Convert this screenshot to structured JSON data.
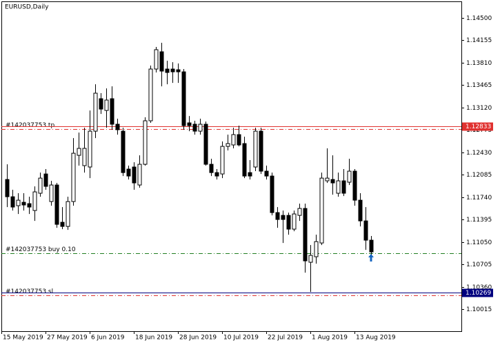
{
  "chart_data": {
    "type": "candlestick",
    "title": "EURUSD,Daily",
    "categories": [
      "15 May 2019",
      null,
      null,
      null,
      null,
      null,
      null,
      null,
      "27 May 2019",
      null,
      null,
      null,
      null,
      null,
      null,
      null,
      "6 Jun 2019",
      null,
      null,
      null,
      null,
      null,
      null,
      null,
      "18 Jun 2019",
      null,
      null,
      null,
      null,
      null,
      null,
      null,
      "28 Jun 2019",
      null,
      null,
      null,
      null,
      null,
      null,
      null,
      "10 Jul 2019",
      null,
      null,
      null,
      null,
      null,
      null,
      null,
      "22 Jul 2019",
      null,
      null,
      null,
      null,
      null,
      null,
      null,
      "1 Aug 2019",
      null,
      null,
      null,
      null,
      null,
      null,
      null,
      "13 Aug 2019",
      null,
      null
    ],
    "open": [
      1.12012,
      1.11746,
      1.11608,
      1.11661,
      1.1164,
      1.11534,
      1.118,
      1.12097,
      1.11672,
      1.11927,
      1.11353,
      1.11289,
      1.11672,
      1.12384,
      1.12225,
      1.12204,
      1.12756,
      1.13256,
      1.13075,
      1.13256,
      1.12863,
      1.12756,
      1.12172,
      1.12204,
      1.11927,
      1.12246,
      1.12916,
      1.13713,
      1.13979,
      1.13713,
      1.13713,
      1.13702,
      1.1367,
      1.12884,
      1.12863,
      1.12756,
      1.12863,
      1.12246,
      1.12118,
      1.12097,
      1.12522,
      1.12544,
      1.12703,
      1.12565,
      1.12118,
      1.12204,
      1.12756,
      1.1214,
      1.12065,
      1.11502,
      1.11459,
      1.11459,
      1.11247,
      1.11459,
      1.11566,
      1.10737,
      1.10822,
      1.11034,
      1.11991,
      1.12012,
      1.118,
      1.11991,
      1.1197,
      1.1214,
      1.11693,
      1.11374,
      1.11077
    ],
    "high": [
      1.12246,
      1.11853,
      1.118,
      1.118,
      1.11746,
      1.11906,
      1.12118,
      1.12172,
      1.11991,
      1.11959,
      1.11587,
      1.11746,
      1.1265,
      1.12735,
      1.12809,
      1.13075,
      1.13479,
      1.13341,
      1.13415,
      1.13447,
      1.12948,
      1.12809,
      1.12225,
      1.12278,
      1.12384,
      1.12969,
      1.13766,
      1.14053,
      1.14117,
      1.13841,
      1.13819,
      1.13798,
      1.13713,
      1.1299,
      1.12916,
      1.12948,
      1.12905,
      1.12331,
      1.12172,
      1.12597,
      1.12703,
      1.12809,
      1.12841,
      1.12671,
      1.1231,
      1.12809,
      1.12809,
      1.12225,
      1.12118,
      1.11587,
      1.11534,
      1.11502,
      1.11534,
      1.1164,
      1.1164,
      1.11002,
      1.11162,
      1.12118,
      1.12491,
      1.12384,
      1.12118,
      1.12172,
      1.12331,
      1.12172,
      1.118,
      1.11587,
      1.11141
    ],
    "low": [
      1.11587,
      1.11534,
      1.11481,
      1.11534,
      1.11481,
      1.11374,
      1.11746,
      1.11853,
      1.11608,
      1.11268,
      1.11247,
      1.11236,
      1.11608,
      1.12225,
      1.12118,
      1.12033,
      1.1265,
      1.13022,
      1.12809,
      1.12778,
      1.12703,
      1.12065,
      1.12012,
      1.11853,
      1.11885,
      1.12225,
      1.12884,
      1.1366,
      1.13447,
      1.13479,
      1.135,
      1.135,
      1.12778,
      1.12756,
      1.12703,
      1.12703,
      1.12225,
      1.12065,
      1.12012,
      1.12033,
      1.12459,
      1.12491,
      1.12522,
      1.12033,
      1.12012,
      1.1214,
      1.12097,
      1.12012,
      1.11459,
      1.11268,
      1.11034,
      1.11162,
      1.11215,
      1.11374,
      1.10577,
      1.1028,
      1.10715,
      1.11002,
      1.11959,
      1.11778,
      1.11746,
      1.11757,
      1.11927,
      1.11608,
      1.11289,
      1.10928,
      1.10822
    ],
    "close": [
      1.11746,
      1.11587,
      1.11693,
      1.11619,
      1.11587,
      1.11821,
      1.12033,
      1.11906,
      1.11927,
      1.11321,
      1.11289,
      1.11672,
      1.12416,
      1.12491,
      1.12491,
      1.12756,
      1.13341,
      1.13096,
      1.13235,
      1.12863,
      1.12778,
      1.12118,
      1.12065,
      1.11959,
      1.12246,
      1.12916,
      1.13713,
      1.14011,
      1.13681,
      1.1366,
      1.1367,
      1.1367,
      1.12841,
      1.12841,
      1.12756,
      1.12863,
      1.12246,
      1.12118,
      1.12065,
      1.12522,
      1.12565,
      1.12703,
      1.12544,
      1.12065,
      1.12065,
      1.12756,
      1.1214,
      1.12065,
      1.11502,
      1.11396,
      1.11396,
      1.11247,
      1.11481,
      1.11566,
      1.10758,
      1.10843,
      1.11055,
      1.12033,
      1.12033,
      1.11959,
      1.11991,
      1.118,
      1.1214,
      1.11693,
      1.11374,
      1.11077,
      1.10896
    ],
    "up_color": "#ffffff",
    "down_color": "#000000",
    "outline_color": "#000000",
    "ylim": [
      1.09675,
      1.14755
    ],
    "yticks": [
      {
        "value": 1.145,
        "label": "1.14500"
      },
      1.14155,
      {
        "value": 1.1381,
        "label": "1.13810"
      },
      1.13465,
      {
        "value": 1.1312,
        "label": "1.13120"
      },
      1.12775,
      {
        "value": 1.1243,
        "label": "1.12430"
      },
      1.12085,
      {
        "value": 1.1174,
        "label": "1.11740"
      },
      1.11395,
      {
        "value": 1.1105,
        "label": "1.11050"
      },
      1.10705,
      {
        "value": 1.1036,
        "label": "1.10360"
      },
      1.10015
    ],
    "levels": [
      {
        "label": "#142037753 tp",
        "value": 1.12789,
        "color": "#e0312f"
      },
      {
        "label": "#142037753 buy 0.10",
        "value": 1.10876,
        "color": "#1e7d1e"
      },
      {
        "label": "#142037753 sl",
        "value": 1.10227,
        "color": "#e0312f"
      }
    ],
    "price_labels": [
      {
        "value": 1.12833,
        "color": "#e0312f"
      },
      {
        "value": 1.10269,
        "color": "#00007f"
      }
    ]
  }
}
